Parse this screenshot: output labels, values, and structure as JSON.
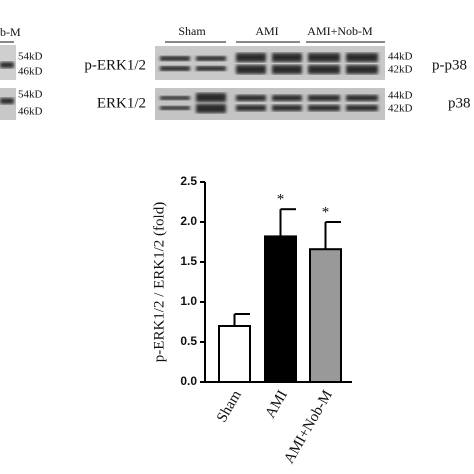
{
  "blots": {
    "left_lane_label": "b-M",
    "left_markers": [
      "54kD",
      "46kD",
      "54kD",
      "46kD"
    ],
    "lanes": [
      "Sham",
      "AMI",
      "AMI+Nob-M"
    ],
    "rows": [
      "p-ERK1/2",
      "ERK1/2"
    ],
    "markers": [
      "44kD",
      "42kD",
      "44kD",
      "42kD"
    ],
    "right_rows": [
      "p-p38",
      "p38"
    ]
  },
  "chart_data": {
    "type": "bar",
    "ylabel": "p-ERK1/2 / ERK1/2 (fold)",
    "categories": [
      "Sham",
      "AMI",
      "AMI+Nob-M"
    ],
    "values": [
      0.7,
      1.82,
      1.66
    ],
    "errors": [
      0.15,
      0.34,
      0.34
    ],
    "colors": [
      "#ffffff",
      "#000000",
      "#999999"
    ],
    "annotations": [
      {
        "text": "*",
        "x": "AMI"
      },
      {
        "text": "*",
        "x": "AMI+Nob-M"
      }
    ],
    "ylim": [
      0,
      2.5
    ],
    "yticks": [
      {
        "value": 0,
        "label": "0.0"
      },
      {
        "value": 0.5,
        "label": "0.5"
      },
      {
        "value": 1,
        "label": "1.0"
      },
      {
        "value": 1.5,
        "label": "1.5"
      },
      {
        "value": 2,
        "label": "2.0"
      },
      {
        "value": 2.5,
        "label": "2.5"
      }
    ]
  }
}
